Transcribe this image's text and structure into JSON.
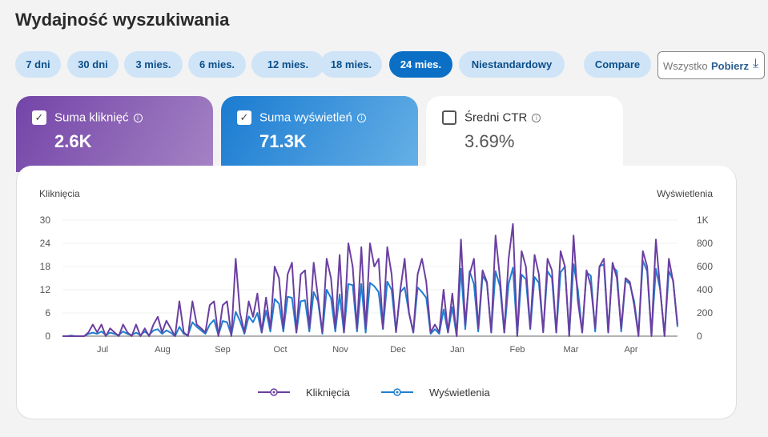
{
  "header": {
    "title": "Wydajność wyszukiwania"
  },
  "ranges": [
    {
      "label": "7 dni"
    },
    {
      "label": "30 dni"
    },
    {
      "label": "3 mies."
    },
    {
      "label": "6 mies."
    },
    {
      "label": "12 mies."
    },
    {
      "label": "18 mies."
    },
    {
      "label": "24 mies.",
      "selected": true
    },
    {
      "label": "Niestandardowy"
    }
  ],
  "compare_label": "Compare",
  "download": {
    "label": "Pobierz",
    "overlap_label": "Wszystko"
  },
  "metrics": [
    {
      "label": "Suma kliknięć",
      "value": "2.6K",
      "checked": true,
      "color": "#7344a8"
    },
    {
      "label": "Suma wyświetleń",
      "value": "71.3K",
      "checked": true,
      "color": "#1a7bd1"
    },
    {
      "label": "Średni CTR",
      "value": "3.69%",
      "checked": false
    }
  ],
  "chart_data": {
    "type": "line",
    "ylabel_left": "Kliknięcia",
    "ylabel_right": "Wyświetlenia",
    "yticks_left": [
      "0",
      "6",
      "12",
      "18",
      "24",
      "30"
    ],
    "ylim_left": [
      0,
      30
    ],
    "yticks_right": [
      "0",
      "200",
      "400",
      "600",
      "800",
      "1K"
    ],
    "ylim_right": [
      0,
      1000
    ],
    "xticks": [
      "Jul",
      "Aug",
      "Sep",
      "Oct",
      "Nov",
      "Dec",
      "Jan",
      "Feb",
      "Mar",
      "Apr"
    ],
    "x_range": "~Jun 10 – ~Apr 24, sampled every ~2 days",
    "series": [
      {
        "name": "Kliknięcia",
        "color": "#6b3fa0",
        "axis": "left",
        "values": [
          0,
          0,
          0,
          0,
          0,
          0,
          1,
          3,
          1,
          3,
          0,
          2,
          1,
          0,
          3,
          1,
          0,
          3,
          0,
          2,
          0,
          3,
          5,
          1,
          4,
          2,
          0,
          9,
          1,
          0,
          9,
          3,
          2,
          1,
          8,
          9,
          0,
          8,
          9,
          0,
          20,
          6,
          1,
          9,
          5,
          11,
          1,
          10,
          2,
          18,
          15,
          2,
          16,
          19,
          1,
          16,
          17,
          2,
          19,
          10,
          1,
          20,
          15,
          2,
          21,
          1,
          24,
          18,
          2,
          23,
          2,
          24,
          18,
          20,
          2,
          23,
          16,
          1,
          12,
          20,
          6,
          1,
          16,
          20,
          14,
          1,
          3,
          1,
          12,
          1,
          11,
          0,
          25,
          3,
          16,
          20,
          2,
          17,
          14,
          1,
          26,
          15,
          1,
          20,
          29,
          0,
          22,
          18,
          2,
          21,
          16,
          1,
          20,
          17,
          1,
          22,
          18,
          0,
          26,
          9,
          1,
          17,
          13,
          2,
          18,
          20,
          1,
          19,
          15,
          2,
          15,
          14,
          8,
          0,
          22,
          18,
          0,
          25,
          12,
          0,
          20,
          14,
          3
        ]
      },
      {
        "name": "Wyświetlenia",
        "color": "#1f7fcf",
        "axis": "right",
        "values": [
          0,
          0,
          5,
          0,
          0,
          0,
          20,
          30,
          20,
          40,
          10,
          30,
          20,
          10,
          40,
          20,
          10,
          30,
          10,
          40,
          10,
          50,
          60,
          20,
          50,
          30,
          0,
          80,
          20,
          10,
          120,
          80,
          50,
          20,
          100,
          140,
          10,
          130,
          120,
          10,
          210,
          130,
          20,
          170,
          120,
          200,
          30,
          220,
          40,
          320,
          280,
          40,
          340,
          330,
          30,
          300,
          310,
          40,
          380,
          300,
          20,
          400,
          330,
          40,
          360,
          30,
          450,
          440,
          40,
          450,
          30,
          460,
          430,
          380,
          60,
          470,
          400,
          40,
          380,
          420,
          200,
          30,
          420,
          380,
          330,
          20,
          60,
          20,
          230,
          30,
          250,
          0,
          580,
          60,
          560,
          450,
          40,
          520,
          460,
          30,
          560,
          430,
          30,
          450,
          590,
          10,
          530,
          490,
          60,
          510,
          460,
          40,
          560,
          500,
          30,
          550,
          600,
          10,
          620,
          400,
          30,
          550,
          520,
          40,
          600,
          620,
          30,
          600,
          560,
          40,
          480,
          450,
          300,
          20,
          650,
          560,
          10,
          580,
          400,
          10,
          560,
          480,
          80
        ]
      }
    ],
    "legend": [
      "Kliknięcia",
      "Wyświetlenia"
    ],
    "legend_position": "bottom"
  }
}
